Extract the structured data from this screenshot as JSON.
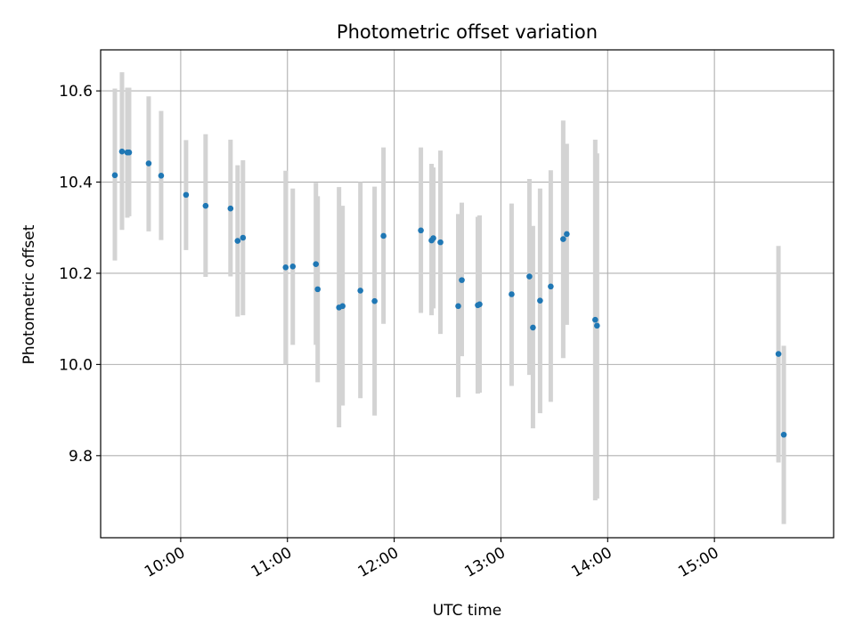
{
  "chart_data": {
    "type": "scatter",
    "title": "Photometric offset variation",
    "xlabel": "UTC time",
    "ylabel": "Photometric offset",
    "x_axis_kind": "time",
    "x_ticks": [
      "10:00",
      "11:00",
      "12:00",
      "13:00",
      "14:00",
      "15:00"
    ],
    "x_tick_rotation_deg": 30,
    "xlim": [
      "09:15",
      "16:07"
    ],
    "ylim": [
      9.62,
      10.69
    ],
    "y_ticks": [
      9.8,
      10.0,
      10.2,
      10.4,
      10.6
    ],
    "y_tick_labels": [
      "9.8",
      "10.0",
      "10.2",
      "10.4",
      "10.6"
    ],
    "grid": true,
    "legend": "none",
    "colors": {
      "points": "#1f77b4",
      "error_bars": "#d3d3d3",
      "grid": "#b0b0b0",
      "axes": "#000000"
    },
    "series": [
      {
        "points": [
          {
            "x": "09:23",
            "y": 10.415,
            "lo": 10.228,
            "hi": 10.605
          },
          {
            "x": "09:27",
            "y": 10.467,
            "lo": 10.295,
            "hi": 10.641
          },
          {
            "x": "09:30",
            "y": 10.465,
            "lo": 10.322,
            "hi": 10.607
          },
          {
            "x": "09:31",
            "y": 10.465,
            "lo": 10.325,
            "hi": 10.607
          },
          {
            "x": "09:42",
            "y": 10.441,
            "lo": 10.292,
            "hi": 10.588
          },
          {
            "x": "09:49",
            "y": 10.414,
            "lo": 10.273,
            "hi": 10.556
          },
          {
            "x": "10:03",
            "y": 10.372,
            "lo": 10.251,
            "hi": 10.492
          },
          {
            "x": "10:14",
            "y": 10.348,
            "lo": 10.192,
            "hi": 10.505
          },
          {
            "x": "10:28",
            "y": 10.342,
            "lo": 10.193,
            "hi": 10.493
          },
          {
            "x": "10:32",
            "y": 10.271,
            "lo": 10.105,
            "hi": 10.437
          },
          {
            "x": "10:35",
            "y": 10.278,
            "lo": 10.108,
            "hi": 10.448
          },
          {
            "x": "10:59",
            "y": 10.213,
            "lo": 10.0,
            "hi": 10.425
          },
          {
            "x": "11:03",
            "y": 10.215,
            "lo": 10.043,
            "hi": 10.386
          },
          {
            "x": "11:16",
            "y": 10.22,
            "lo": 10.043,
            "hi": 10.398
          },
          {
            "x": "11:17",
            "y": 10.165,
            "lo": 9.961,
            "hi": 10.369
          },
          {
            "x": "11:29",
            "y": 10.125,
            "lo": 9.862,
            "hi": 10.389
          },
          {
            "x": "11:31",
            "y": 10.128,
            "lo": 9.91,
            "hi": 10.348
          },
          {
            "x": "11:41",
            "y": 10.162,
            "lo": 9.926,
            "hi": 10.4
          },
          {
            "x": "11:49",
            "y": 10.139,
            "lo": 9.888,
            "hi": 10.39
          },
          {
            "x": "11:54",
            "y": 10.282,
            "lo": 10.089,
            "hi": 10.476
          },
          {
            "x": "12:15",
            "y": 10.294,
            "lo": 10.113,
            "hi": 10.476
          },
          {
            "x": "12:21",
            "y": 10.272,
            "lo": 10.108,
            "hi": 10.44
          },
          {
            "x": "12:22",
            "y": 10.277,
            "lo": 10.123,
            "hi": 10.432
          },
          {
            "x": "12:26",
            "y": 10.268,
            "lo": 10.067,
            "hi": 10.469
          },
          {
            "x": "12:36",
            "y": 10.128,
            "lo": 9.928,
            "hi": 10.33
          },
          {
            "x": "12:38",
            "y": 10.185,
            "lo": 10.018,
            "hi": 10.355
          },
          {
            "x": "12:47",
            "y": 10.13,
            "lo": 9.936,
            "hi": 10.324
          },
          {
            "x": "12:48",
            "y": 10.132,
            "lo": 9.938,
            "hi": 10.327
          },
          {
            "x": "13:06",
            "y": 10.154,
            "lo": 9.953,
            "hi": 10.353
          },
          {
            "x": "13:16",
            "y": 10.193,
            "lo": 9.977,
            "hi": 10.407
          },
          {
            "x": "13:18",
            "y": 10.081,
            "lo": 9.86,
            "hi": 10.304
          },
          {
            "x": "13:22",
            "y": 10.14,
            "lo": 9.893,
            "hi": 10.386
          },
          {
            "x": "13:28",
            "y": 10.171,
            "lo": 9.918,
            "hi": 10.426
          },
          {
            "x": "13:35",
            "y": 10.275,
            "lo": 10.014,
            "hi": 10.535
          },
          {
            "x": "13:37",
            "y": 10.286,
            "lo": 10.087,
            "hi": 10.484
          },
          {
            "x": "13:53",
            "y": 10.098,
            "lo": 9.702,
            "hi": 10.493
          },
          {
            "x": "13:54",
            "y": 10.085,
            "lo": 9.706,
            "hi": 10.463
          },
          {
            "x": "15:36",
            "y": 10.023,
            "lo": 9.785,
            "hi": 10.26
          },
          {
            "x": "15:39",
            "y": 9.846,
            "lo": 9.65,
            "hi": 10.041
          }
        ]
      }
    ]
  }
}
